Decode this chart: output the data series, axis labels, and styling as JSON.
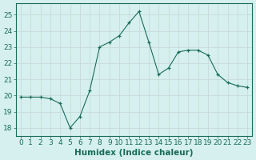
{
  "x": [
    0,
    1,
    2,
    3,
    4,
    5,
    6,
    7,
    8,
    9,
    10,
    11,
    12,
    13,
    14,
    15,
    16,
    17,
    18,
    19,
    20,
    21,
    22,
    23
  ],
  "y": [
    19.9,
    19.9,
    19.9,
    19.8,
    19.5,
    18.0,
    18.7,
    20.3,
    23.0,
    23.3,
    23.7,
    24.5,
    25.2,
    23.3,
    21.3,
    21.7,
    22.7,
    22.8,
    22.8,
    22.5,
    21.3,
    20.8,
    20.6,
    20.5
  ],
  "line_color": "#1a6b5a",
  "marker": "+",
  "marker_size": 3,
  "bg_color": "#d5f0ee",
  "grid_color": "#c8dbd8",
  "title": "",
  "xlabel": "Humidex (Indice chaleur)",
  "ylabel": "",
  "ylim": [
    17.5,
    25.7
  ],
  "yticks": [
    18,
    19,
    20,
    21,
    22,
    23,
    24,
    25
  ],
  "xticks": [
    0,
    1,
    2,
    3,
    4,
    5,
    6,
    7,
    8,
    9,
    10,
    11,
    12,
    13,
    14,
    15,
    16,
    17,
    18,
    19,
    20,
    21,
    22,
    23
  ],
  "tick_label_size": 6.5,
  "xlabel_size": 7.5,
  "xlabel_color": "#1a6b5a"
}
